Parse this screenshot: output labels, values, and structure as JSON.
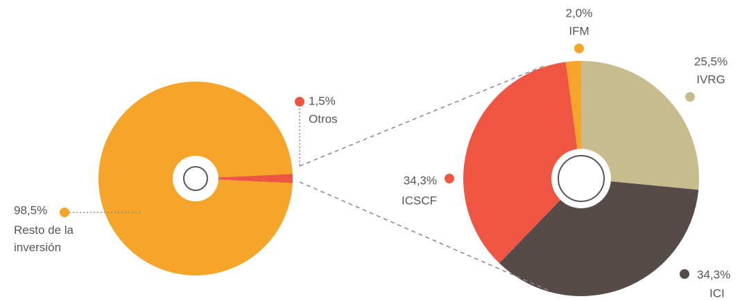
{
  "chart_data": [
    {
      "type": "pie",
      "categories": [
        "Resto de la inversión",
        "Otros"
      ],
      "values": [
        98.5,
        1.5
      ],
      "value_labels": [
        "98,5%",
        "1,5%"
      ],
      "colors": [
        "#f5a52a",
        "#ee5543"
      ]
    },
    {
      "type": "pie",
      "categories": [
        "IFM",
        "IVRG",
        "ICI",
        "ICSCF"
      ],
      "values": [
        2.0,
        25.5,
        34.3,
        34.3
      ],
      "value_labels": [
        "2,0%",
        "25,5%",
        "34,3%",
        "34,3%"
      ],
      "colors": [
        "#f5a52a",
        "#c8bc8f",
        "#574b4a",
        "#ee5543"
      ]
    }
  ]
}
